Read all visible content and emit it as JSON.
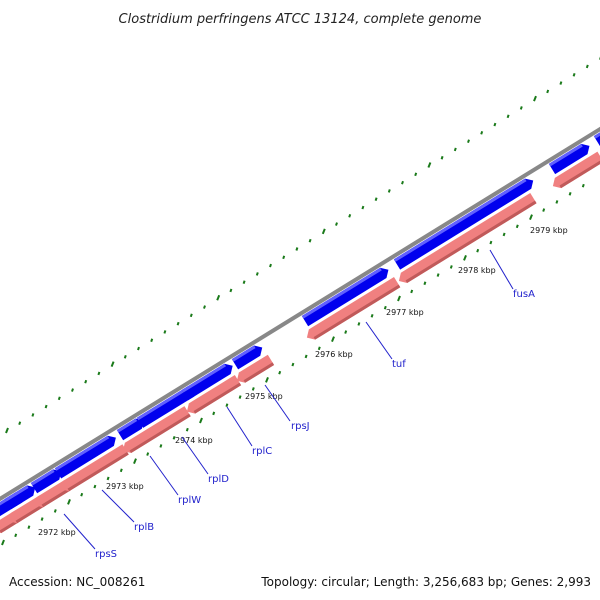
{
  "title": "Clostridium perfringens ATCC 13124, complete genome",
  "footer": {
    "accession": "Accession: NC_008261",
    "summary": "Topology: circular; Length: 3,256,683 bp; Genes: 2,993"
  },
  "colors": {
    "backbone": "#888888",
    "forward_feature": "#0000ee",
    "reverse_feature": "#f08080",
    "ticks": "#1a7a1a",
    "gene_label": "#2222cc"
  },
  "tick_labels": [
    "2972 kbp",
    "2973 kbp",
    "2974 kbp",
    "2975 kbp",
    "2976 kbp",
    "2977 kbp",
    "2978 kbp",
    "2979 kbp"
  ],
  "gene_labels": [
    "rpsS",
    "rplB",
    "rplW",
    "rplD",
    "rplC",
    "rpsJ",
    "tuf",
    "fusA"
  ]
}
